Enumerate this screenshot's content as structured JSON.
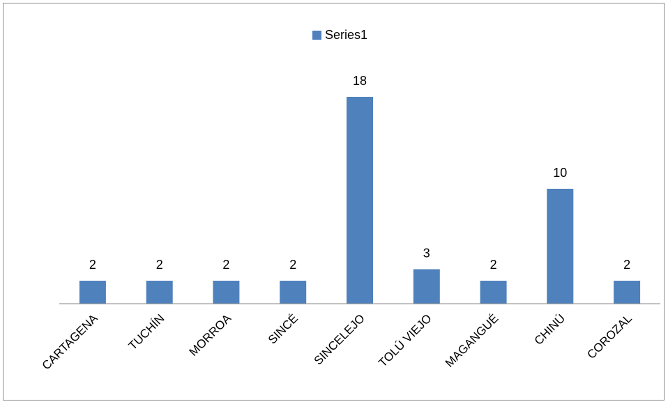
{
  "chart_data": {
    "type": "bar",
    "categories": [
      "CARTAGENA",
      "TUCHÍN",
      "MORROA",
      "SINCÉ",
      "SINCELEJO",
      "TOLÚ VIEJO",
      "MAGANGUÉ",
      "CHINÚ",
      "COROZAL"
    ],
    "series": [
      {
        "name": "Series1",
        "values": [
          2,
          2,
          2,
          2,
          18,
          3,
          2,
          10,
          2
        ],
        "color": "#4f81bd"
      }
    ],
    "title": "",
    "xlabel": "",
    "ylabel": "",
    "ylim": [
      0,
      20
    ],
    "legend_position": "top",
    "grid": false,
    "data_labels": true
  }
}
